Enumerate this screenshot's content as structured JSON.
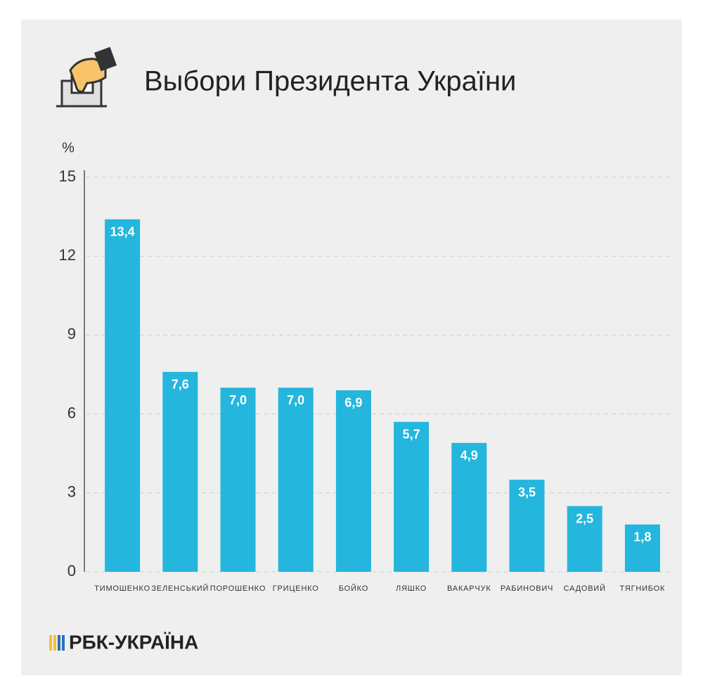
{
  "chart_data": {
    "type": "bar",
    "title": "Выбори Президента України",
    "y_label": "%",
    "categories": [
      "ТИМОШЕНКО",
      "ЗЕЛЕНСЬКИЙ",
      "ПОРОШЕНКО",
      "ГРИЦЕНКО",
      "БОЙКО",
      "ЛЯШКО",
      "ВАКАРЧУК",
      "РАБИНОВИЧ",
      "САДОВИЙ",
      "ТЯГНИБОК"
    ],
    "values": [
      13.4,
      7.6,
      7.0,
      7.0,
      6.9,
      5.7,
      4.9,
      3.5,
      2.5,
      1.8
    ],
    "value_labels": [
      "13,4",
      "7,6",
      "7,0",
      "7,0",
      "6,9",
      "5,7",
      "4,9",
      "3,5",
      "2,5",
      "1,8"
    ],
    "color": "#24b6dd",
    "ylim": [
      0,
      15
    ],
    "yticks": [
      0,
      3,
      6,
      9,
      12,
      15
    ],
    "grid": true,
    "source": "РБК-УКРАЇНА"
  }
}
